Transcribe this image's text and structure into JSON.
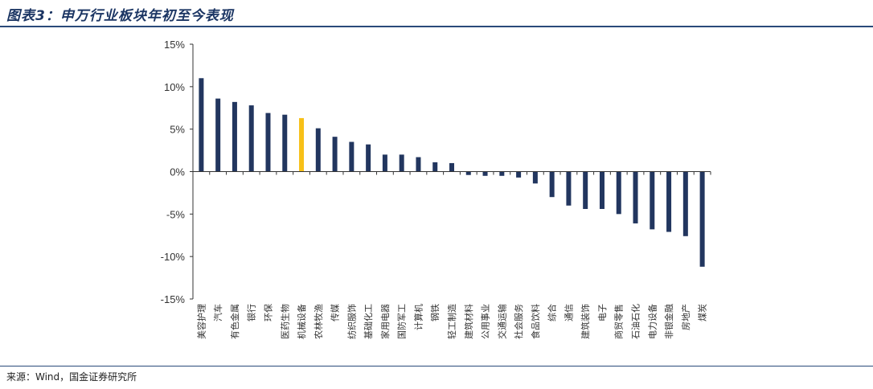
{
  "header": {
    "title": "图表3：申万行业板块年初至今表现"
  },
  "footer": {
    "source": "来源：Wind，国金证券研究所"
  },
  "colors": {
    "bar": "#22365f",
    "highlight": "#f7c018",
    "axis": "#333333"
  },
  "chart_data": {
    "type": "bar",
    "title": "",
    "xlabel": "",
    "ylabel": "",
    "ylim": [
      -15,
      15
    ],
    "yticks": [
      15,
      10,
      5,
      0,
      -5,
      -10,
      -15
    ],
    "ytick_labels": [
      "15%",
      "10%",
      "5%",
      "0%",
      "-5%",
      "-10%",
      "-15%"
    ],
    "highlight_category": "机械设备",
    "categories": [
      "美容护理",
      "汽车",
      "有色金属",
      "银行",
      "环保",
      "医药生物",
      "机械设备",
      "农林牧渔",
      "传媒",
      "纺织服饰",
      "基础化工",
      "家用电器",
      "国防军工",
      "计算机",
      "钢铁",
      "轻工制造",
      "建筑材料",
      "公用事业",
      "交通运输",
      "社会服务",
      "食品饮料",
      "综合",
      "通信",
      "建筑装饰",
      "电子",
      "商贸零售",
      "石油石化",
      "电力设备",
      "非银金融",
      "房地产",
      "煤炭"
    ],
    "values": [
      11.0,
      8.6,
      8.2,
      7.8,
      6.9,
      6.7,
      6.3,
      5.1,
      4.1,
      3.5,
      3.2,
      2.0,
      2.0,
      1.7,
      1.1,
      1.0,
      -0.4,
      -0.5,
      -0.5,
      -0.7,
      -1.4,
      -3.0,
      -4.0,
      -4.4,
      -4.4,
      -5.0,
      -6.1,
      -6.8,
      -7.1,
      -7.6,
      -11.2
    ]
  }
}
